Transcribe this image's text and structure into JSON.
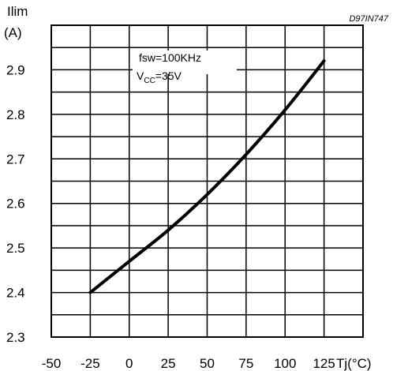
{
  "chart_data": {
    "type": "line",
    "id_label": "D97IN747",
    "ylabel_line1": "Ilim",
    "ylabel_line2": "(A)",
    "xlabel": "Tj(°C)",
    "xlim": [
      -50,
      150
    ],
    "ylim": [
      2.3,
      3.0
    ],
    "x_tick_labels": [
      "-50",
      "-25",
      "0",
      "25",
      "50",
      "75",
      "100",
      "125"
    ],
    "x_tick_values": [
      -50,
      -25,
      0,
      25,
      50,
      75,
      100,
      125
    ],
    "y_tick_labels": [
      "2.3",
      "2.4",
      "2.5",
      "2.6",
      "2.7",
      "2.8",
      "2.9"
    ],
    "y_tick_values": [
      2.3,
      2.4,
      2.5,
      2.6,
      2.7,
      2.8,
      2.9
    ],
    "grid": true,
    "grid_x_step": 25,
    "grid_y_step": 0.05,
    "annotation": {
      "line1": "fsw=100KHz",
      "line2_main": "V",
      "line2_sub": "CC",
      "line2_rest": "=35V"
    },
    "series": [
      {
        "x": [
          -25,
          0,
          25,
          50,
          75,
          100,
          125
        ],
        "y": [
          2.4,
          2.47,
          2.54,
          2.62,
          2.71,
          2.81,
          2.92
        ]
      }
    ],
    "line_color": "#000000"
  }
}
